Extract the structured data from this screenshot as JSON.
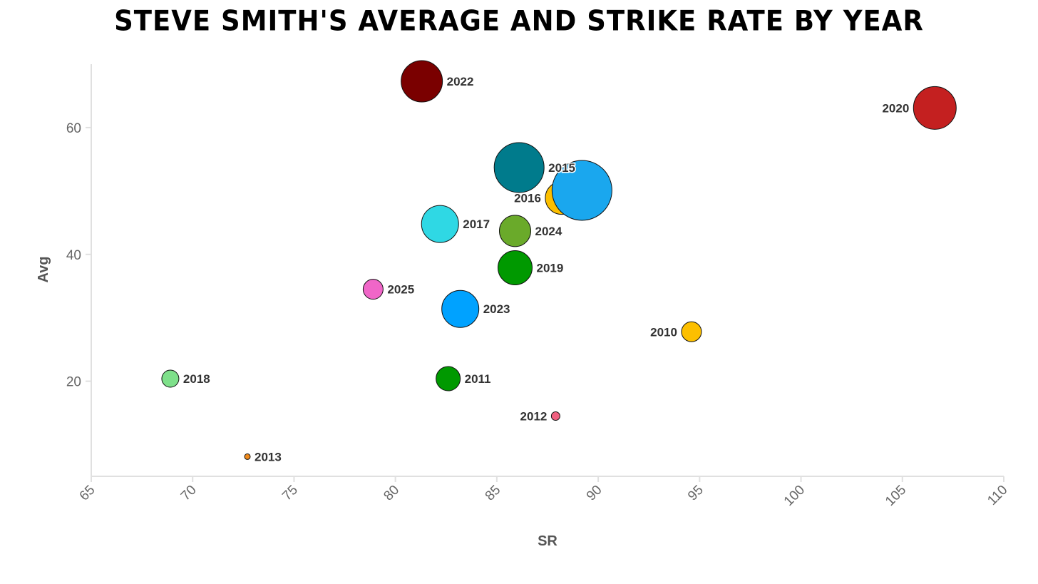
{
  "chart_data": {
    "type": "scatter",
    "title": "STEVE SMITH'S AVERAGE AND STRIKE RATE BY YEAR",
    "xlabel": "SR",
    "ylabel": "Avg",
    "xlim": [
      65,
      110
    ],
    "ylim": [
      5,
      70
    ],
    "xticks": [
      65,
      70,
      75,
      80,
      85,
      90,
      95,
      100,
      105,
      110
    ],
    "yticks": [
      20,
      40,
      60
    ],
    "grid": false,
    "points": [
      {
        "label": "2010",
        "sr": 94.6,
        "avg": 27.8,
        "size": 14,
        "color": "#fcbf00",
        "label_side": "left"
      },
      {
        "label": "2011",
        "sr": 82.6,
        "avg": 20.4,
        "size": 17,
        "color": "#009900",
        "label_side": "right"
      },
      {
        "label": "2012",
        "sr": 87.9,
        "avg": 14.5,
        "size": 6,
        "color": "#f06080",
        "label_side": "left"
      },
      {
        "label": "2013",
        "sr": 72.7,
        "avg": 8.1,
        "size": 4,
        "color": "#f08a1c",
        "label_side": "right"
      },
      {
        "label": "2015",
        "sr": 86.1,
        "avg": 53.7,
        "size": 35,
        "color": "#007b8c",
        "label_side": "right"
      },
      {
        "label": "2016",
        "sr": 88.2,
        "avg": 48.9,
        "size": 23,
        "color": "#fcbf00",
        "label_side": "left"
      },
      {
        "label": "2017",
        "sr": 82.2,
        "avg": 44.8,
        "size": 26,
        "color": "#2fd8e4",
        "label_side": "right"
      },
      {
        "label": "2018",
        "sr": 68.9,
        "avg": 20.4,
        "size": 12,
        "color": "#7ee08a",
        "label_side": "right"
      },
      {
        "label": "2019",
        "sr": 85.9,
        "avg": 37.9,
        "size": 24,
        "color": "#009900",
        "label_side": "right"
      },
      {
        "label": "2020",
        "sr": 106.6,
        "avg": 63.1,
        "size": 30,
        "color": "#c42020",
        "label_side": "left"
      },
      {
        "label": "2022",
        "sr": 81.3,
        "avg": 67.3,
        "size": 29,
        "color": "#7a0000",
        "label_side": "right"
      },
      {
        "label": "2023",
        "sr": 83.2,
        "avg": 31.4,
        "size": 26,
        "color": "#00a2ff",
        "label_side": "right"
      },
      {
        "label": "2024",
        "sr": 85.9,
        "avg": 43.7,
        "size": 22,
        "color": "#6aaa2a",
        "label_side": "right"
      },
      {
        "label": "2025",
        "sr": 78.9,
        "avg": 34.5,
        "size": 14,
        "color": "#f066c8",
        "label_side": "right"
      },
      {
        "label": "",
        "sr": 89.2,
        "avg": 50.1,
        "size": 42,
        "color": "#1aa7ee",
        "label_side": "right"
      }
    ]
  }
}
